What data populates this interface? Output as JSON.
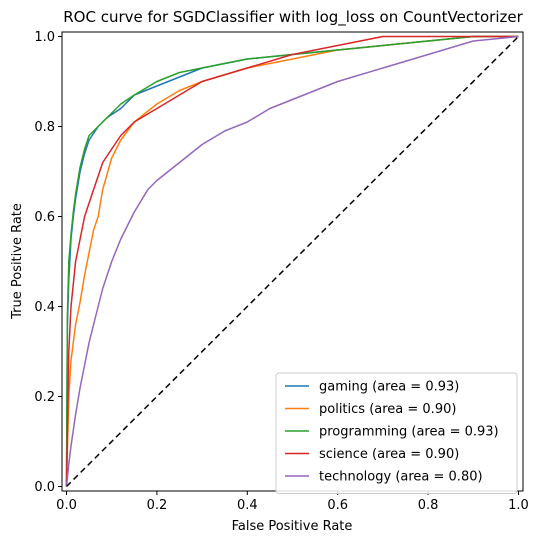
{
  "chart_data": {
    "type": "line",
    "title": "ROC curve for SGDClassifier with log_loss on CountVectorizer",
    "xlabel": "False Positive Rate",
    "ylabel": "True Positive Rate",
    "xlim": [
      -0.01,
      1.01
    ],
    "ylim": [
      -0.01,
      1.01
    ],
    "xticks": [
      "0.0",
      "0.2",
      "0.4",
      "0.6",
      "0.8",
      "1.0"
    ],
    "yticks": [
      "0.0",
      "0.2",
      "0.4",
      "0.6",
      "0.8",
      "1.0"
    ],
    "grid": false,
    "legend_position": "lower-right",
    "diagonal": {
      "x": [
        0,
        1
      ],
      "y": [
        0,
        1
      ],
      "color": "#000000",
      "style": "dashed"
    },
    "series": [
      {
        "name": "gaming (area = 0.93)",
        "color": "#1f77b4",
        "x": [
          0,
          0.002,
          0.005,
          0.01,
          0.015,
          0.02,
          0.03,
          0.04,
          0.05,
          0.07,
          0.09,
          0.12,
          0.15,
          0.2,
          0.25,
          0.3,
          0.35,
          0.4,
          0.5,
          0.6,
          0.7,
          0.8,
          0.9,
          1.0
        ],
        "y": [
          0,
          0.36,
          0.46,
          0.55,
          0.6,
          0.64,
          0.7,
          0.74,
          0.77,
          0.8,
          0.82,
          0.84,
          0.87,
          0.89,
          0.91,
          0.93,
          0.94,
          0.95,
          0.96,
          0.97,
          0.98,
          0.99,
          1.0,
          1.0
        ]
      },
      {
        "name": "politics (area = 0.90)",
        "color": "#ff7f0e",
        "x": [
          0,
          0.005,
          0.01,
          0.02,
          0.03,
          0.04,
          0.05,
          0.06,
          0.07,
          0.08,
          0.1,
          0.12,
          0.15,
          0.2,
          0.25,
          0.3,
          0.4,
          0.5,
          0.6,
          0.7,
          0.8,
          0.9,
          1.0
        ],
        "y": [
          0,
          0.2,
          0.28,
          0.36,
          0.41,
          0.47,
          0.52,
          0.57,
          0.6,
          0.66,
          0.73,
          0.77,
          0.81,
          0.85,
          0.88,
          0.9,
          0.93,
          0.95,
          0.97,
          0.98,
          0.99,
          1.0,
          1.0
        ]
      },
      {
        "name": "programming (area = 0.93)",
        "color": "#2ca02c",
        "x": [
          0,
          0.002,
          0.005,
          0.01,
          0.015,
          0.02,
          0.03,
          0.04,
          0.05,
          0.07,
          0.09,
          0.12,
          0.15,
          0.2,
          0.25,
          0.3,
          0.35,
          0.4,
          0.5,
          0.6,
          0.7,
          0.8,
          0.9,
          1.0
        ],
        "y": [
          0,
          0.38,
          0.5,
          0.56,
          0.61,
          0.65,
          0.71,
          0.75,
          0.78,
          0.8,
          0.82,
          0.85,
          0.87,
          0.9,
          0.92,
          0.93,
          0.94,
          0.95,
          0.96,
          0.97,
          0.98,
          0.99,
          1.0,
          1.0
        ]
      },
      {
        "name": "science (area = 0.90)",
        "color": "#d62728",
        "x": [
          0,
          0.005,
          0.01,
          0.02,
          0.03,
          0.04,
          0.05,
          0.06,
          0.07,
          0.08,
          0.1,
          0.12,
          0.15,
          0.2,
          0.25,
          0.3,
          0.4,
          0.5,
          0.6,
          0.7,
          0.8,
          0.9,
          1.0
        ],
        "y": [
          0,
          0.3,
          0.4,
          0.5,
          0.55,
          0.6,
          0.63,
          0.66,
          0.69,
          0.72,
          0.75,
          0.78,
          0.81,
          0.84,
          0.87,
          0.9,
          0.93,
          0.96,
          0.98,
          1.0,
          1.0,
          1.0,
          1.0
        ]
      },
      {
        "name": "technology (area = 0.80)",
        "color": "#9467bd",
        "x": [
          0,
          0.005,
          0.01,
          0.02,
          0.03,
          0.04,
          0.05,
          0.06,
          0.08,
          0.1,
          0.12,
          0.15,
          0.18,
          0.2,
          0.25,
          0.3,
          0.35,
          0.4,
          0.45,
          0.5,
          0.55,
          0.6,
          0.7,
          0.8,
          0.9,
          1.0
        ],
        "y": [
          0,
          0.05,
          0.09,
          0.16,
          0.22,
          0.27,
          0.32,
          0.36,
          0.44,
          0.5,
          0.55,
          0.61,
          0.66,
          0.68,
          0.72,
          0.76,
          0.79,
          0.81,
          0.84,
          0.86,
          0.88,
          0.9,
          0.93,
          0.96,
          0.99,
          1.0
        ]
      }
    ]
  }
}
